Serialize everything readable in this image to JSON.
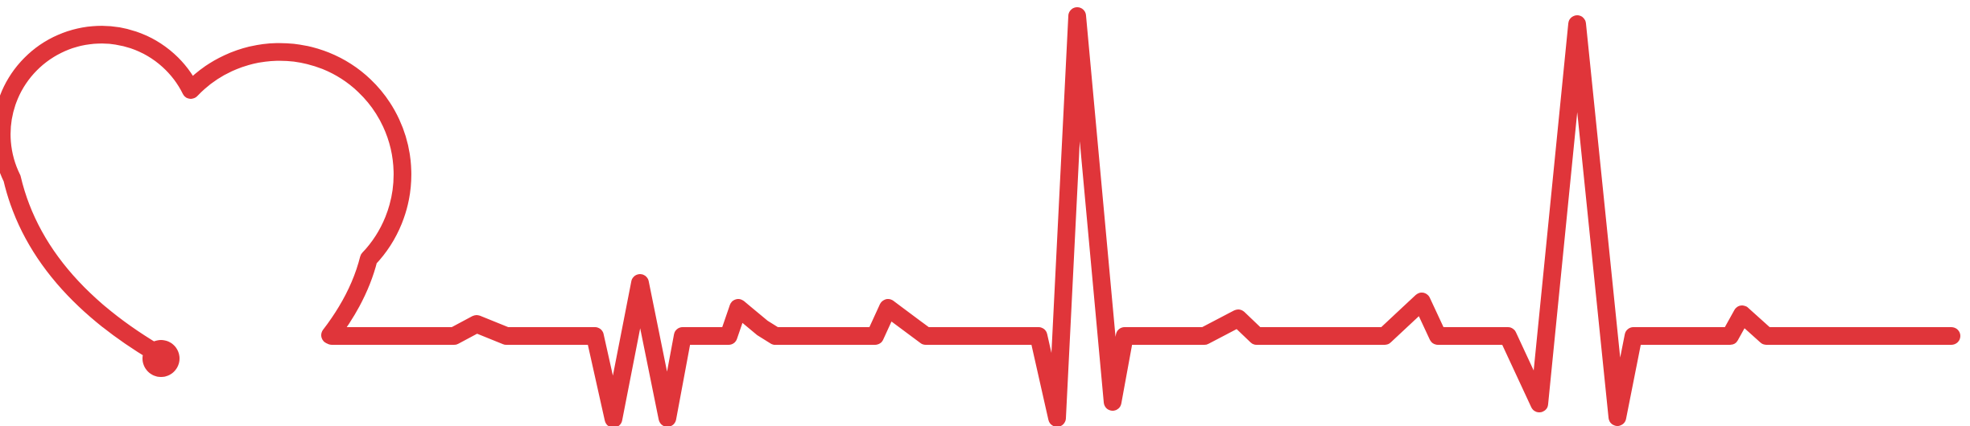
{
  "graphic": {
    "description_name": "heart-heartbeat-line",
    "stroke_color": "#e0353a",
    "background_color": "#ffffff"
  }
}
